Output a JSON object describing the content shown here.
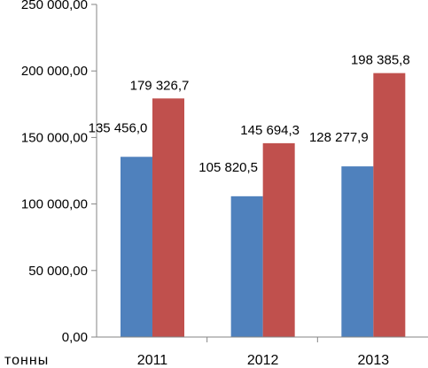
{
  "chart_data": {
    "type": "bar",
    "unit_label": "тонны",
    "categories": [
      "2011",
      "2012",
      "2013"
    ],
    "series": [
      {
        "values": [
          135456.0,
          105820.5,
          128277.9
        ],
        "labels": [
          "135 456,0",
          "105 820,5",
          "128 277,9"
        ],
        "color": "#4f81bd"
      },
      {
        "values": [
          179326.7,
          145694.3,
          198385.8
        ],
        "labels": [
          "179 326,7",
          "145 694,3",
          "198 385,8"
        ],
        "color": "#c0504d"
      }
    ],
    "y_ticks": [
      {
        "value": 0,
        "label": "0,00"
      },
      {
        "value": 50000,
        "label": "50 000,00"
      },
      {
        "value": 100000,
        "label": "100 000,00"
      },
      {
        "value": 150000,
        "label": "150 000,00"
      },
      {
        "value": 200000,
        "label": "200 000,00"
      },
      {
        "value": 250000,
        "label": "250 000,00"
      }
    ],
    "ylim": [
      0,
      250000
    ],
    "grid": false,
    "legend": "none",
    "axis_color": "#868686"
  }
}
